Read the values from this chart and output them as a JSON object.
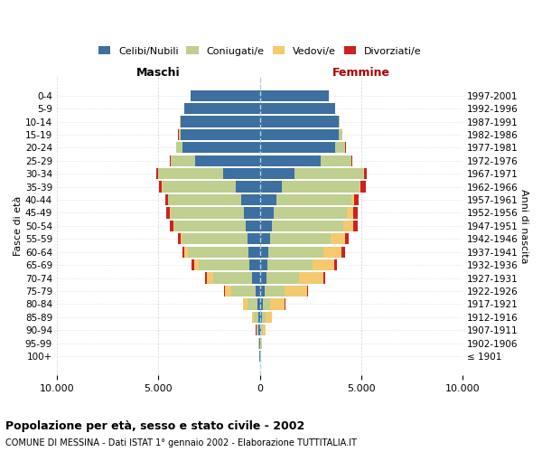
{
  "age_groups": [
    "100+",
    "95-99",
    "90-94",
    "85-89",
    "80-84",
    "75-79",
    "70-74",
    "65-69",
    "60-64",
    "55-59",
    "50-54",
    "45-49",
    "40-44",
    "35-39",
    "30-34",
    "25-29",
    "20-24",
    "15-19",
    "10-14",
    "5-9",
    "0-4"
  ],
  "birth_years": [
    "≤ 1901",
    "1902-1906",
    "1907-1911",
    "1912-1916",
    "1917-1921",
    "1922-1926",
    "1927-1931",
    "1932-1936",
    "1937-1941",
    "1942-1946",
    "1947-1951",
    "1952-1956",
    "1957-1961",
    "1962-1966",
    "1967-1971",
    "1972-1976",
    "1977-1981",
    "1982-1986",
    "1987-1991",
    "1992-1996",
    "1997-2001"
  ],
  "males": {
    "celibi": [
      20,
      30,
      60,
      80,
      120,
      220,
      400,
      500,
      550,
      600,
      700,
      800,
      900,
      1200,
      1800,
      3200,
      3800,
      3900,
      3900,
      3700,
      3400
    ],
    "coniugati": [
      10,
      20,
      80,
      200,
      500,
      1200,
      1900,
      2500,
      3000,
      3200,
      3500,
      3600,
      3600,
      3600,
      3200,
      1200,
      300,
      100,
      20,
      10,
      5
    ],
    "vedovi": [
      5,
      10,
      40,
      100,
      200,
      300,
      300,
      250,
      150,
      100,
      60,
      50,
      30,
      20,
      10,
      5,
      5,
      5,
      5,
      5,
      5
    ],
    "divorziati": [
      2,
      2,
      5,
      10,
      20,
      60,
      100,
      120,
      130,
      150,
      180,
      150,
      120,
      150,
      80,
      30,
      10,
      5,
      5,
      5,
      5
    ]
  },
  "females": {
    "nubili": [
      25,
      40,
      70,
      100,
      130,
      220,
      320,
      380,
      430,
      500,
      600,
      700,
      800,
      1100,
      1700,
      3000,
      3700,
      3900,
      3900,
      3700,
      3400
    ],
    "coniugate": [
      10,
      20,
      80,
      200,
      400,
      1000,
      1600,
      2200,
      2700,
      3000,
      3500,
      3600,
      3700,
      3800,
      3400,
      1500,
      500,
      150,
      30,
      10,
      5
    ],
    "vedove": [
      15,
      30,
      120,
      300,
      700,
      1100,
      1200,
      1100,
      900,
      700,
      500,
      300,
      150,
      80,
      30,
      15,
      10,
      5,
      5,
      5,
      5
    ],
    "divorziate": [
      2,
      2,
      5,
      10,
      20,
      70,
      100,
      130,
      150,
      180,
      230,
      220,
      200,
      250,
      150,
      50,
      20,
      5,
      5,
      5,
      5
    ]
  },
  "colors": {
    "celibi": "#3d6fa0",
    "coniugati": "#bfcf8f",
    "vedovi": "#f5c96e",
    "divorziati": "#cc2222"
  },
  "xlim": 10000,
  "title": "Popolazione per età, sesso e stato civile - 2002",
  "subtitle": "COMUNE DI MESSINA - Dati ISTAT 1° gennaio 2002 - Elaborazione TUTTITALIA.IT",
  "ylabel": "Fasce di età",
  "ylabel_right": "Anni di nascita",
  "xlabel_left": "Maschi",
  "xlabel_right": "Femmine",
  "xtick_labels": [
    "10.000",
    "5.000",
    "0",
    "5.000",
    "10.000"
  ],
  "xtick_vals": [
    -10000,
    -5000,
    0,
    5000,
    10000
  ]
}
